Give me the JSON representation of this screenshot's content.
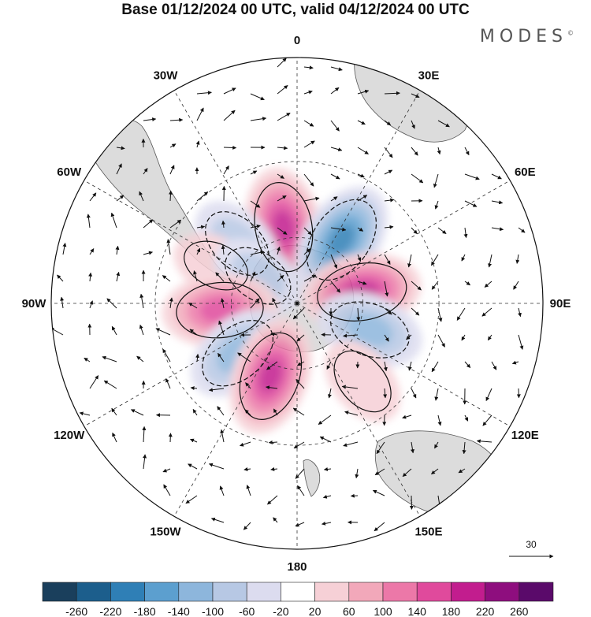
{
  "title": "Base 01/12/2024 00 UTC, valid 04/12/2024 00 UTC",
  "brand": "MODES",
  "brand_mark": "©",
  "lon_labels": [
    {
      "text": "0",
      "lon": 0
    },
    {
      "text": "30E",
      "lon": 30
    },
    {
      "text": "60E",
      "lon": 60
    },
    {
      "text": "90E",
      "lon": 90
    },
    {
      "text": "120E",
      "lon": 120
    },
    {
      "text": "150E",
      "lon": 150
    },
    {
      "text": "180",
      "lon": 180
    },
    {
      "text": "150W",
      "lon": -150
    },
    {
      "text": "120W",
      "lon": -120
    },
    {
      "text": "90W",
      "lon": -90
    },
    {
      "text": "60W",
      "lon": -60
    },
    {
      "text": "30W",
      "lon": -30
    }
  ],
  "reference_vector": {
    "label": "30"
  },
  "colorbar": {
    "ticks": [
      "-260",
      "-220",
      "-180",
      "-140",
      "-100",
      "-60",
      "-20",
      "20",
      "60",
      "100",
      "140",
      "180",
      "220",
      "260"
    ],
    "colors": [
      "#1a3f5c",
      "#1c5e8c",
      "#2f7fb6",
      "#5c9fcf",
      "#8db6dc",
      "#b7c8e4",
      "#dcdcef",
      "#ffffff",
      "#f6d0d6",
      "#f2a8ba",
      "#ec78a8",
      "#e04a9c",
      "#c21d8e",
      "#8e0e7e",
      "#5a0a6a"
    ]
  },
  "chart_data": {
    "type": "heatmap",
    "projection": "polar stereographic, south pole centred",
    "field": "anomaly contours with wind vectors",
    "colorbar_range": [
      -260,
      260
    ],
    "anomaly_centers": [
      {
        "lon": -10,
        "lat": -55,
        "value": 200
      },
      {
        "lon": -45,
        "lat": -52,
        "value": -100
      },
      {
        "lon": -65,
        "lat": -50,
        "value": 40
      },
      {
        "lon": -55,
        "lat": -68,
        "value": -80
      },
      {
        "lon": -95,
        "lat": -55,
        "value": 180
      },
      {
        "lon": -130,
        "lat": -55,
        "value": -140
      },
      {
        "lon": -160,
        "lat": -55,
        "value": 200
      },
      {
        "lon": 35,
        "lat": -55,
        "value": -200
      },
      {
        "lon": 80,
        "lat": -60,
        "value": 200
      },
      {
        "lon": 110,
        "lat": -55,
        "value": -140
      },
      {
        "lon": 140,
        "lat": -45,
        "value": 60
      }
    ]
  }
}
